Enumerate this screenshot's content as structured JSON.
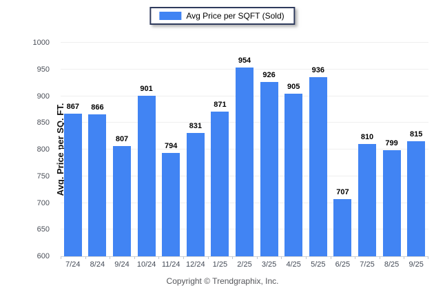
{
  "legend": {
    "swatch_color": "#4184f3",
    "label": "Avg Price per SQFT (Sold)"
  },
  "footer": {
    "copyright": "Copyright © Trendgraphix, Inc."
  },
  "chart_data": {
    "type": "bar",
    "title": "",
    "ylabel": "Avg. Price per SQ. FT.",
    "xlabel": "",
    "categories": [
      "7/24",
      "8/24",
      "9/24",
      "10/24",
      "11/24",
      "12/24",
      "1/25",
      "2/25",
      "3/25",
      "4/25",
      "5/25",
      "6/25",
      "7/25",
      "8/25",
      "9/25"
    ],
    "values": [
      867,
      866,
      807,
      901,
      794,
      831,
      871,
      954,
      926,
      905,
      936,
      707,
      810,
      799,
      815
    ],
    "series_name": "Avg Price per SQFT (Sold)",
    "ylim": [
      600,
      1000
    ],
    "ytick_step": 50,
    "yticks": [
      600,
      650,
      700,
      750,
      800,
      850,
      900,
      950,
      1000
    ],
    "grid": true,
    "legend_position": "top-center",
    "bar_color": "#4184f3",
    "value_labels": true
  }
}
